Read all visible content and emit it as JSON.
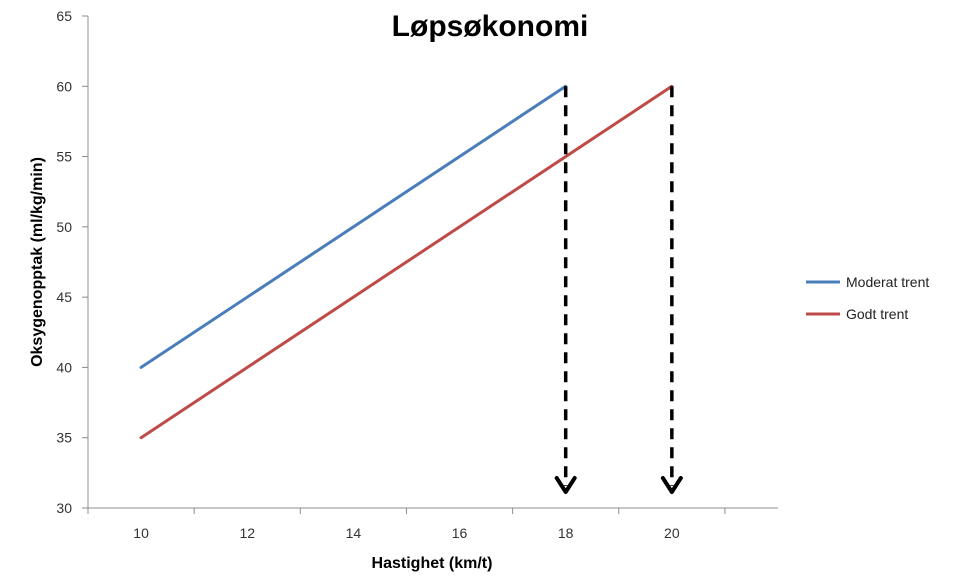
{
  "chart_data": {
    "type": "line",
    "title": "Løpsøkonomi",
    "xlabel": "Hastighet (km/t)",
    "ylabel": "Oksygenopptak (ml/kg/min)",
    "xlim": [
      9,
      22
    ],
    "ylim": [
      30,
      65
    ],
    "x_ticks": [
      10,
      12,
      14,
      16,
      18,
      20
    ],
    "y_ticks": [
      30,
      35,
      40,
      45,
      50,
      55,
      60,
      65
    ],
    "legend_position": "right",
    "grid": false,
    "series": [
      {
        "name": "Moderat trent",
        "color": "#4a7ebb",
        "x": [
          10,
          18
        ],
        "y": [
          40,
          60
        ]
      },
      {
        "name": "Godt trent",
        "color": "#be4b48",
        "x": [
          10,
          20
        ],
        "y": [
          35,
          60
        ]
      }
    ],
    "annotations": [
      {
        "type": "dashed-arrow-down",
        "x": 18,
        "from_y": 60,
        "to_y": 30,
        "color": "#000000"
      },
      {
        "type": "dashed-arrow-down",
        "x": 20,
        "from_y": 60,
        "to_y": 30,
        "color": "#000000"
      }
    ]
  }
}
